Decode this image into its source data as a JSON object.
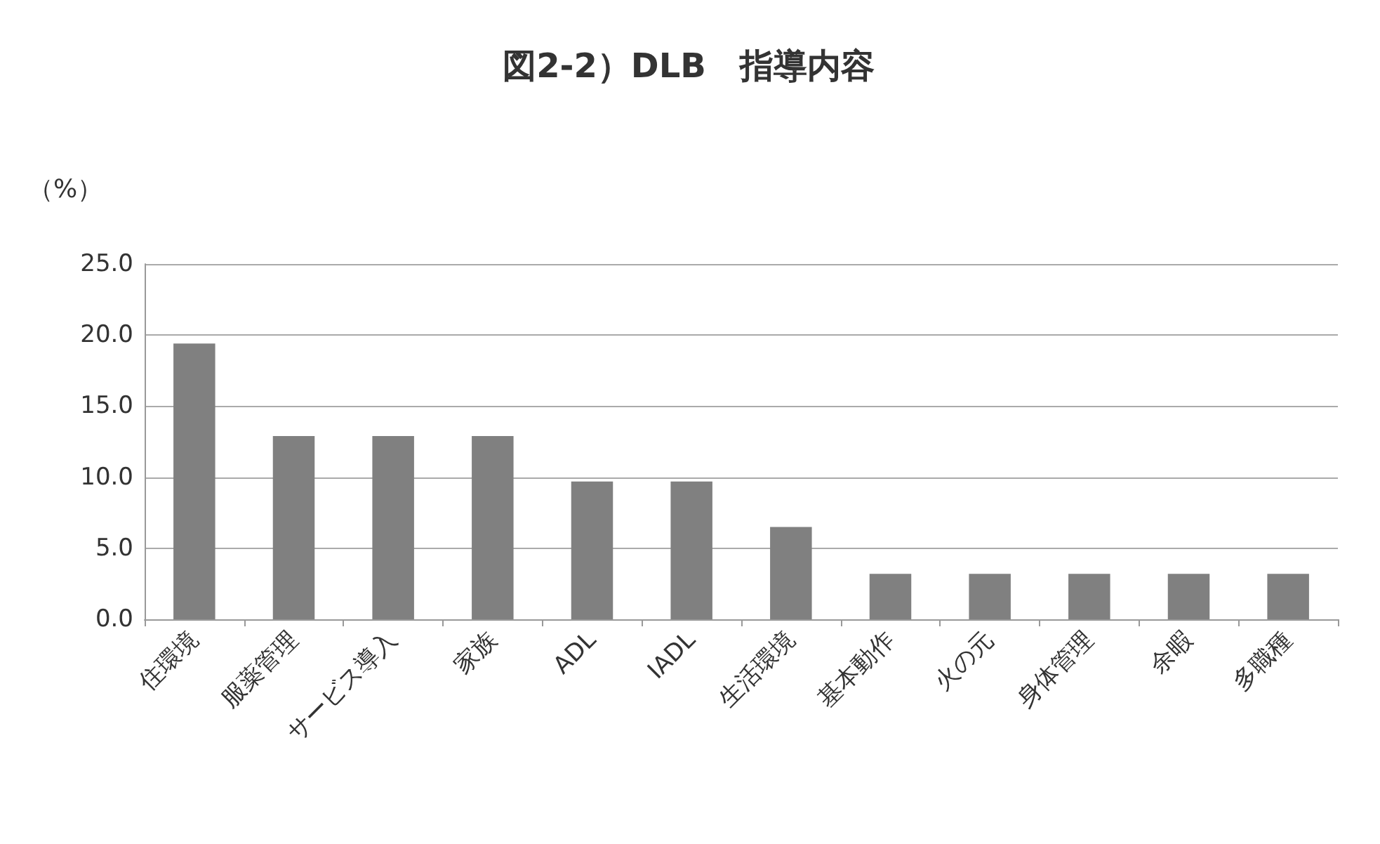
{
  "chart_data": {
    "type": "bar",
    "title": "図2-2）DLB　指導内容",
    "ylabel": "（%）",
    "categories": [
      "住環境",
      "服薬管理",
      "サービス導入",
      "家族",
      "ADL",
      "IADL",
      "生活環境",
      "基本動作",
      "火の元",
      "身体管理",
      "余暇",
      "多職種"
    ],
    "values": [
      19.4,
      12.9,
      12.9,
      12.9,
      9.7,
      9.7,
      6.5,
      3.2,
      3.2,
      3.2,
      3.2,
      3.2
    ],
    "color": "#808080",
    "ylim": [
      0,
      25
    ],
    "yticks": [
      {
        "value": 0,
        "label": "0.0"
      },
      {
        "value": 5,
        "label": "5.0"
      },
      {
        "value": 10,
        "label": "10.0"
      },
      {
        "value": 15,
        "label": "15.0"
      },
      {
        "value": 20,
        "label": "20.0"
      },
      {
        "value": 25,
        "label": "25.0"
      }
    ],
    "grid": "y"
  }
}
